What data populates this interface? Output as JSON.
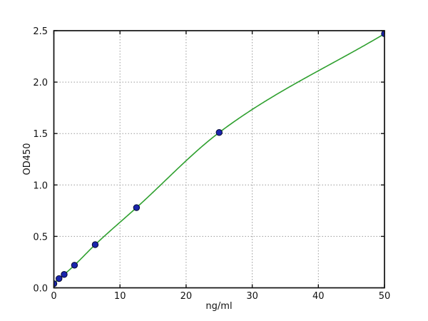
{
  "figure": {
    "background": "#ffffff"
  },
  "chart_data": {
    "type": "scatter",
    "title": "",
    "xlabel": "ng/ml",
    "ylabel": "OD450",
    "xlim": [
      0,
      50
    ],
    "ylim": [
      0,
      2.5
    ],
    "grid": true,
    "grid_style": "dotted",
    "legend": false,
    "x_ticks": {
      "values": [
        0,
        10,
        20,
        30,
        40,
        50
      ],
      "labels": [
        "0",
        "10",
        "20",
        "30",
        "40",
        "50"
      ]
    },
    "y_ticks": {
      "values": [
        0,
        0.5,
        1.0,
        1.5,
        2.0,
        2.5
      ],
      "labels": [
        "0.0",
        "0.5",
        "1.0",
        "1.5",
        "2.0",
        "2.5"
      ]
    },
    "series": [
      {
        "name": "standard-points",
        "type": "scatter",
        "marker": "circle",
        "x": [
          0,
          0.78,
          1.56,
          3.12,
          6.25,
          12.5,
          25,
          50
        ],
        "y": [
          0.04,
          0.09,
          0.13,
          0.22,
          0.42,
          0.78,
          1.51,
          2.47
        ]
      },
      {
        "name": "fit-curve",
        "type": "line",
        "x": [
          0,
          0.78,
          1.56,
          3.12,
          6.25,
          12.5,
          25,
          50
        ],
        "y": [
          0.04,
          0.09,
          0.13,
          0.22,
          0.42,
          0.78,
          1.51,
          2.47
        ]
      }
    ],
    "colors": {
      "curve": "#2fa02f",
      "marker_fill": "#1a25ad",
      "marker_edge": "#050a32",
      "grid": "#9a9a9a",
      "axis": "#111111",
      "background": "#ffffff"
    }
  }
}
